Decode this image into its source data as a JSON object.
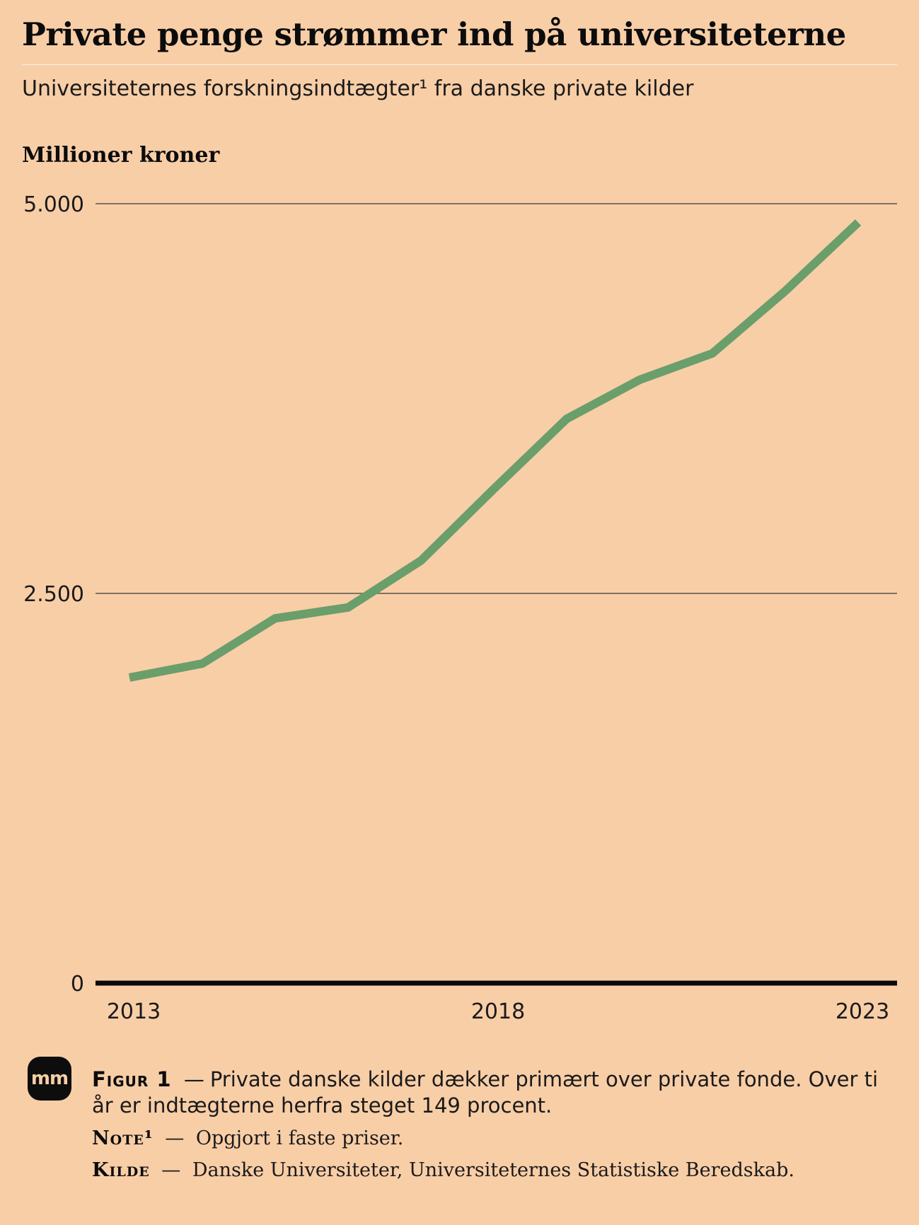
{
  "header": {
    "title": "Private penge strømmer ind på universiteterne",
    "subtitle": "Universiteternes forskningsindtægter¹ fra danske private kilder",
    "unit_label": "Millioner kroner"
  },
  "chart_data": {
    "type": "line",
    "title": "Private penge strømmer ind på universiteterne",
    "subtitle": "Universiteternes forskningsindtægter¹ fra danske private kilder",
    "ylabel": "Millioner kroner",
    "xlabel": "",
    "x": [
      2013,
      2014,
      2015,
      2016,
      2017,
      2018,
      2019,
      2020,
      2021,
      2022,
      2023
    ],
    "series": [
      {
        "values": [
          1960,
          2050,
          2340,
          2410,
          2710,
          3170,
          3620,
          3870,
          4040,
          4440,
          4880
        ]
      }
    ],
    "ylim": [
      0,
      5000
    ],
    "xlim": [
      2013,
      2023
    ],
    "y_ticks": [
      {
        "value": 0,
        "label": "0"
      },
      {
        "value": 2500,
        "label": "2.500"
      },
      {
        "value": 5000,
        "label": "5.000"
      }
    ],
    "x_ticks": [
      {
        "value": 2013,
        "label": "2013"
      },
      {
        "value": 2018,
        "label": "2018"
      },
      {
        "value": 2023,
        "label": "2023"
      }
    ],
    "line_color": "#6a9e6b",
    "grid": true,
    "legend": "none"
  },
  "footer": {
    "logo_text": "mm",
    "figure_label": "Figur 1",
    "figure_text": "Private danske kilder dækker primært over private fonde. Over ti år er indtægterne herfra steget 149 procent.",
    "note_label": "Note¹",
    "note_text": "Opgjort i faste priser.",
    "source_label": "Kilde",
    "source_text": "Danske Universiteter, Universiteternes Statistiske Beredskab.",
    "dash": "—"
  },
  "colors": {
    "background": "#f8cea7",
    "line": "#6a9e6b",
    "text": "#111111"
  }
}
